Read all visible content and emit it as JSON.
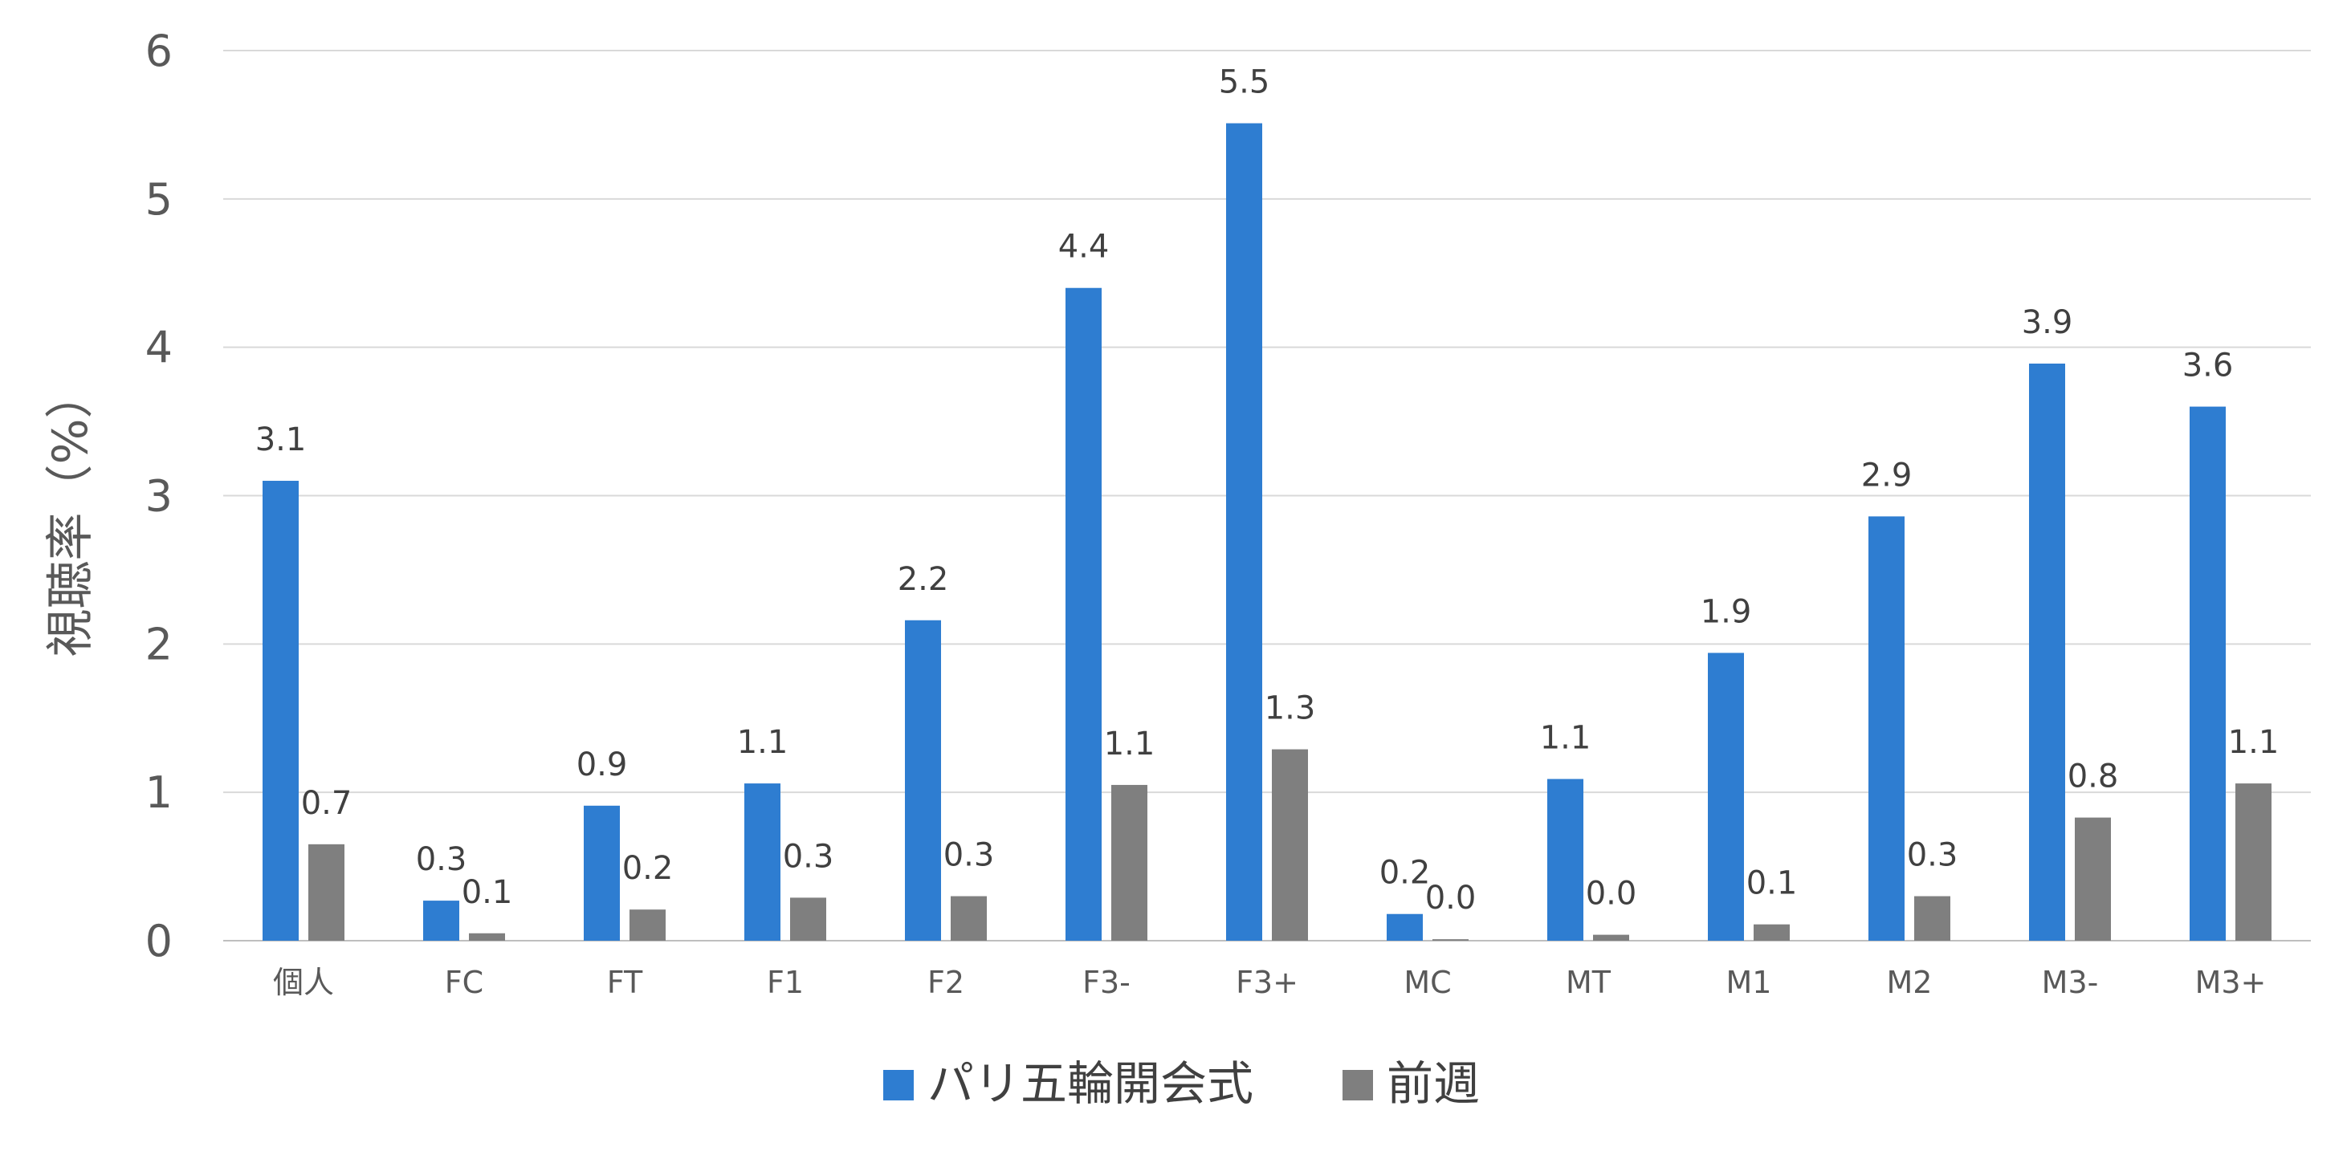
{
  "chart_data": {
    "type": "bar",
    "title": "",
    "ylabel": "視聴率（%）",
    "xlabel": "",
    "ylim": [
      0,
      6
    ],
    "yticks": [
      "0",
      "1",
      "2",
      "3",
      "4",
      "5",
      "6"
    ],
    "grid": true,
    "legend_position": "bottom",
    "categories": [
      "個人",
      "FC",
      "FT",
      "F1",
      "F2",
      "F3-",
      "F3+",
      "MC",
      "MT",
      "M1",
      "M2",
      "M3-",
      "M3+"
    ],
    "series": [
      {
        "name": "パリ五輪開会式",
        "color": "#2e7dd1",
        "values": [
          3.1,
          0.27,
          0.91,
          1.06,
          2.16,
          4.4,
          5.51,
          0.18,
          1.09,
          1.94,
          2.86,
          3.89,
          3.6
        ],
        "labels": [
          "3.1",
          "0.3",
          "0.9",
          "1.1",
          "2.2",
          "4.4",
          "5.5",
          "0.2",
          "1.1",
          "1.9",
          "2.9",
          "3.9",
          "3.6"
        ]
      },
      {
        "name": "前週",
        "color": "#7f7f7f",
        "values": [
          0.65,
          0.05,
          0.21,
          0.29,
          0.3,
          1.05,
          1.29,
          0.01,
          0.04,
          0.11,
          0.3,
          0.83,
          1.06
        ],
        "labels": [
          "0.7",
          "0.1",
          "0.2",
          "0.3",
          "0.3",
          "1.1",
          "1.3",
          "0.0",
          "0.0",
          "0.1",
          "0.3",
          "0.8",
          "1.1"
        ]
      }
    ]
  }
}
